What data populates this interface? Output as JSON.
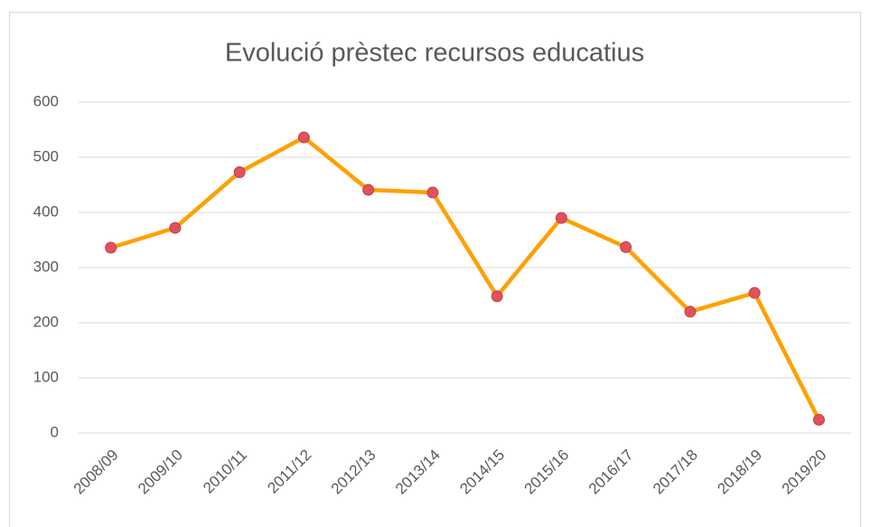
{
  "chart_data": {
    "type": "line",
    "title": "Evolució prèstec recursos educatius",
    "categories": [
      "2008/09",
      "2009/10",
      "2010/11",
      "2011/12",
      "2012/13",
      "2013/14",
      "2014/15",
      "2015/16",
      "2016/17",
      "2017/18",
      "2018/19",
      "2019/20"
    ],
    "values": [
      336,
      372,
      473,
      536,
      441,
      436,
      248,
      390,
      337,
      220,
      254,
      24
    ],
    "color": "#ffa000",
    "marker_color": "#e0525a",
    "ylim": [
      0,
      600
    ],
    "yticks": [
      0,
      100,
      200,
      300,
      400,
      500,
      600
    ],
    "grid": true
  }
}
